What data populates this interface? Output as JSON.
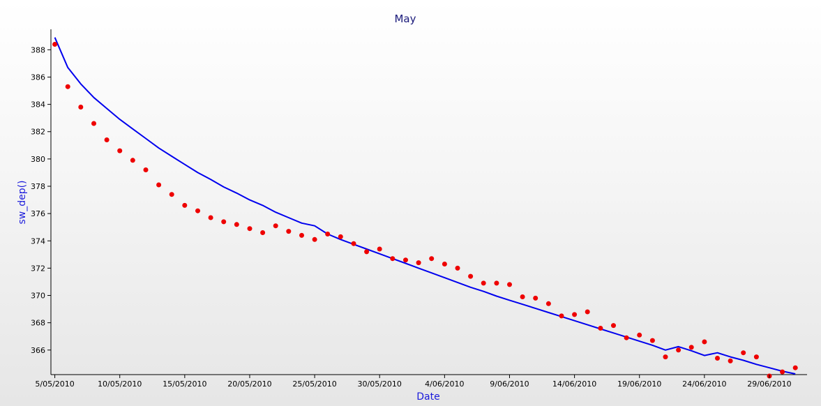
{
  "chart_data": {
    "type": "line",
    "title": "May",
    "xlabel": "Date",
    "ylabel": "sw_dep()",
    "x_ticks": [
      "5/05/2010",
      "10/05/2010",
      "15/05/2010",
      "20/05/2010",
      "25/05/2010",
      "30/05/2010",
      "4/06/2010",
      "9/06/2010",
      "14/06/2010",
      "19/06/2010",
      "24/06/2010",
      "29/06/2010"
    ],
    "y_ticks": [
      366,
      368,
      370,
      372,
      374,
      376,
      378,
      380,
      382,
      384,
      386,
      388
    ],
    "xlim": [
      -0.3,
      57.9
    ],
    "ylim": [
      364.2,
      389.5
    ],
    "grid": false,
    "x_start_label": "5/05/2010",
    "series": [
      {
        "kind": "line",
        "color": "#0000ee",
        "x": [
          0,
          1,
          2,
          3,
          4,
          5,
          6,
          7,
          8,
          9,
          10,
          11,
          12,
          13,
          14,
          15,
          16,
          17,
          18,
          19,
          20,
          21,
          22,
          23,
          24,
          25,
          26,
          27,
          28,
          29,
          30,
          31,
          32,
          33,
          34,
          35,
          36,
          37,
          38,
          39,
          40,
          41,
          42,
          43,
          44,
          45,
          46,
          47,
          48,
          49,
          50,
          51,
          52,
          53,
          54,
          55,
          56,
          57
        ],
        "y": [
          388.9,
          386.7,
          385.5,
          384.5,
          383.7,
          382.9,
          382.2,
          381.5,
          380.8,
          380.2,
          379.6,
          379.0,
          378.5,
          377.95,
          377.5,
          377.0,
          376.6,
          376.1,
          375.7,
          375.3,
          375.1,
          374.5,
          374.1,
          373.75,
          373.4,
          373.05,
          372.7,
          372.35,
          372.0,
          371.65,
          371.3,
          370.95,
          370.6,
          370.3,
          369.95,
          369.65,
          369.35,
          369.05,
          368.75,
          368.45,
          368.15,
          367.85,
          367.55,
          367.25,
          366.95,
          366.65,
          366.35,
          366.0,
          366.25,
          365.95,
          365.6,
          365.8,
          365.5,
          365.25,
          364.95,
          364.7,
          364.45,
          364.25
        ]
      },
      {
        "kind": "scatter",
        "color": "#ee0000",
        "x": [
          0,
          1,
          2,
          3,
          4,
          5,
          6,
          7,
          8,
          9,
          10,
          11,
          12,
          13,
          14,
          15,
          16,
          17,
          18,
          19,
          20,
          21,
          22,
          23,
          24,
          25,
          26,
          27,
          28,
          29,
          30,
          31,
          32,
          33,
          34,
          35,
          36,
          37,
          38,
          39,
          40,
          41,
          42,
          43,
          44,
          45,
          46,
          47,
          48,
          49,
          50,
          51,
          52,
          53,
          54,
          55,
          56,
          57
        ],
        "y": [
          388.4,
          385.3,
          383.8,
          382.6,
          381.4,
          380.6,
          379.9,
          379.2,
          378.1,
          377.4,
          376.6,
          376.2,
          375.7,
          375.4,
          375.2,
          374.9,
          374.6,
          375.1,
          374.7,
          374.4,
          374.1,
          374.5,
          374.3,
          373.8,
          373.2,
          373.4,
          372.7,
          372.6,
          372.4,
          372.7,
          372.3,
          372.0,
          371.4,
          370.9,
          370.9,
          370.8,
          369.9,
          369.8,
          369.4,
          368.5,
          368.6,
          368.8,
          367.6,
          367.8,
          366.9,
          367.1,
          366.7,
          365.5,
          366.0,
          366.2,
          366.6,
          365.4,
          365.2,
          365.8,
          365.5,
          364.1,
          364.4,
          364.7
        ]
      }
    ]
  }
}
